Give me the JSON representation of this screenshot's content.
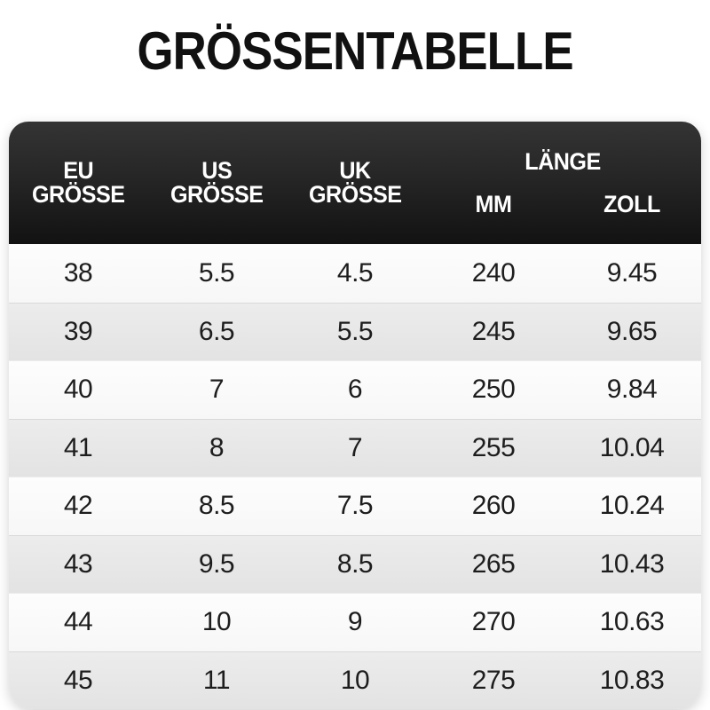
{
  "page_title": "GRÖSSENTABELLE",
  "colors": {
    "header_bg_top": "#343434",
    "header_bg_bottom": "#121212",
    "header_text": "#ffffff",
    "row_light": "#fafafa",
    "row_dark": "#e8e8e8",
    "body_text": "#1d1d1d",
    "title_text": "#111111"
  },
  "table": {
    "header": {
      "eu": {
        "line1": "EU",
        "line2": "GRÖSSE"
      },
      "us": {
        "line1": "US",
        "line2": "GRÖSSE"
      },
      "uk": {
        "line1": "UK",
        "line2": "GRÖSSE"
      },
      "laenge": "LÄNGE",
      "mm": "MM",
      "zoll": "ZOLL"
    },
    "rows": [
      {
        "eu": "38",
        "us": "5.5",
        "uk": "4.5",
        "mm": "240",
        "zoll": "9.45"
      },
      {
        "eu": "39",
        "us": "6.5",
        "uk": "5.5",
        "mm": "245",
        "zoll": "9.65"
      },
      {
        "eu": "40",
        "us": "7",
        "uk": "6",
        "mm": "250",
        "zoll": "9.84"
      },
      {
        "eu": "41",
        "us": "8",
        "uk": "7",
        "mm": "255",
        "zoll": "10.04"
      },
      {
        "eu": "42",
        "us": "8.5",
        "uk": "7.5",
        "mm": "260",
        "zoll": "10.24"
      },
      {
        "eu": "43",
        "us": "9.5",
        "uk": "8.5",
        "mm": "265",
        "zoll": "10.43"
      },
      {
        "eu": "44",
        "us": "10",
        "uk": "9",
        "mm": "270",
        "zoll": "10.63"
      },
      {
        "eu": "45",
        "us": "11",
        "uk": "10",
        "mm": "275",
        "zoll": "10.83"
      }
    ]
  }
}
